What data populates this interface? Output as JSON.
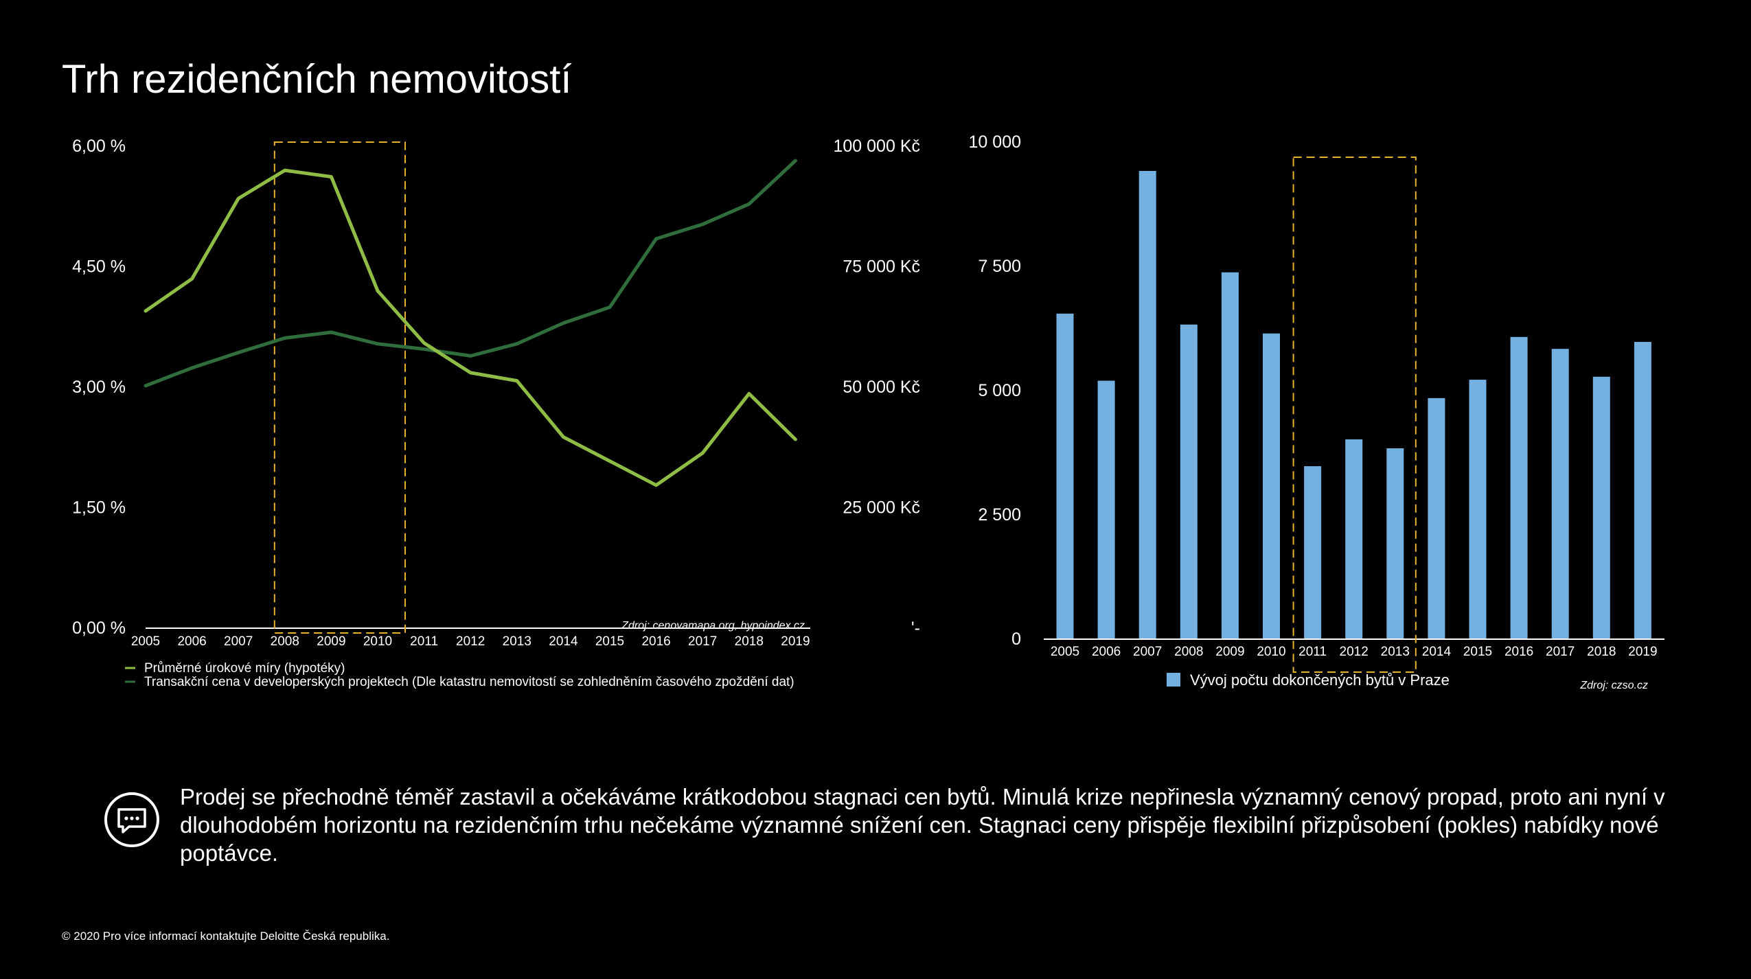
{
  "page": {
    "title": "Trh rezidenčních nemovitostí",
    "note": "Prodej se přechodně téměř zastavil a očekáváme krátkodobou stagnaci cen bytů. Minulá krize nepřinesla významný cenový propad, proto ani nyní v dlouhodobém horizontu na rezidenčním trhu nečekáme významné snížení cen. Stagnaci ceny přispěje flexibilní přizpůsobení (pokles) nabídky nové poptávce.",
    "note_icon": "chat-bubble-icon",
    "footer": "© 2020 Pro více informací kontaktujte Deloitte Česká republika."
  },
  "chart_data": [
    {
      "type": "line",
      "categories": [
        "2005",
        "2006",
        "2007",
        "2008",
        "2009",
        "2010",
        "2011",
        "2012",
        "2013",
        "2014",
        "2015",
        "2016",
        "2017",
        "2018",
        "2019"
      ],
      "series": [
        {
          "name": "Průměrné úrokové míry (hypotéky)",
          "axis": "left",
          "color": "#8fbc45",
          "values": [
            3.95,
            4.35,
            5.35,
            5.7,
            5.62,
            4.2,
            3.55,
            3.18,
            3.08,
            2.38,
            2.08,
            1.78,
            2.18,
            2.92,
            2.35
          ]
        },
        {
          "name": "Transakční cena v developerských projektech (Dle katastru nemovitostí se zohledněním časového zpoždění dat)",
          "axis": "right",
          "color": "#2f6e3c",
          "values": [
            50300,
            54000,
            57200,
            60200,
            61400,
            59000,
            57900,
            56500,
            59000,
            63300,
            66600,
            80800,
            83800,
            88000,
            97000
          ]
        }
      ],
      "left_axis": {
        "min": 0,
        "max": 6,
        "ticks": [
          "0,00 %",
          "1,50 %",
          "3,00 %",
          "4,50 %",
          "6,00 %"
        ]
      },
      "right_axis": {
        "min": 0,
        "max": 100000,
        "ticks": [
          "'-",
          "25 000 Kč",
          "50 000 Kč",
          "75 000 Kč",
          "100 000 Kč"
        ]
      },
      "highlight": {
        "from": "2008",
        "to": "2010",
        "color": "#e6b32e"
      },
      "source": "Zdroj: cenovamapa.org, hypoindex.cz",
      "legend": "bottom-left",
      "grid": false
    },
    {
      "type": "bar",
      "categories": [
        "2005",
        "2006",
        "2007",
        "2008",
        "2009",
        "2010",
        "2011",
        "2012",
        "2013",
        "2014",
        "2015",
        "2016",
        "2017",
        "2018",
        "2019"
      ],
      "series": [
        {
          "name": "Vývoj počtu dokončených bytů v Praze",
          "color": "#74b0e0",
          "values": [
            6550,
            5200,
            9420,
            6330,
            7380,
            6150,
            3480,
            4020,
            3840,
            4850,
            5220,
            6080,
            5840,
            5280,
            5980
          ]
        }
      ],
      "y_axis": {
        "min": 0,
        "max": 10000,
        "ticks": [
          "0",
          "2 500",
          "5 000",
          "7 500",
          "10 000"
        ]
      },
      "highlight": {
        "from": "2011",
        "to": "2013",
        "color": "#e6b32e"
      },
      "source": "Zdroj: czso.cz",
      "legend": "bottom-center",
      "grid": false
    }
  ]
}
